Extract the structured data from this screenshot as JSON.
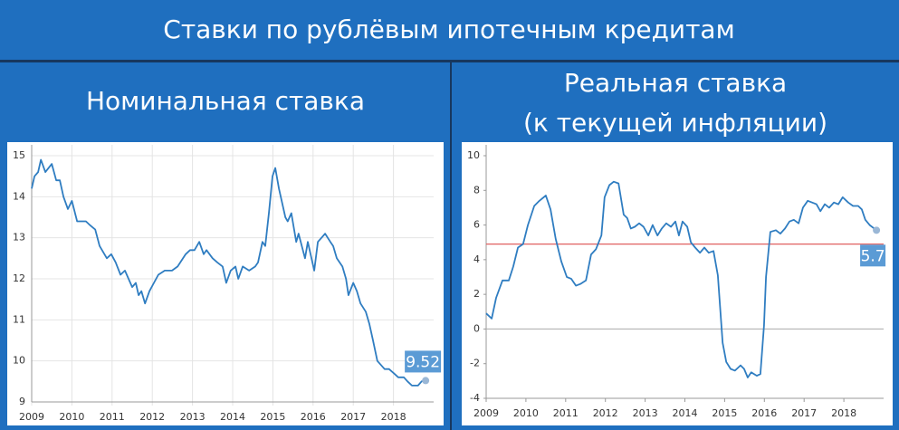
{
  "title": "Ставки по рублёвым ипотечным кредитам",
  "chart_data": [
    {
      "type": "line",
      "title": "Номинальная ставка",
      "color": "#2f7dc1",
      "grid": true,
      "xlim": [
        2009,
        2019
      ],
      "xticks": [
        2009,
        2010,
        2011,
        2012,
        2013,
        2014,
        2015,
        2016,
        2017,
        2018
      ],
      "ylim": [
        9,
        15
      ],
      "yticks": [
        9,
        10,
        11,
        12,
        13,
        14,
        15
      ],
      "x": [
        2009.0,
        2009.07,
        2009.16,
        2009.23,
        2009.34,
        2009.5,
        2009.61,
        2009.7,
        2009.79,
        2009.9,
        2010.0,
        2010.13,
        2010.35,
        2010.46,
        2010.58,
        2010.69,
        2010.87,
        2010.98,
        2011.09,
        2011.21,
        2011.32,
        2011.41,
        2011.5,
        2011.59,
        2011.66,
        2011.73,
        2011.82,
        2011.93,
        2012.04,
        2012.15,
        2012.31,
        2012.49,
        2012.63,
        2012.83,
        2012.94,
        2013.05,
        2013.17,
        2013.28,
        2013.35,
        2013.5,
        2013.62,
        2013.75,
        2013.84,
        2013.95,
        2014.07,
        2014.14,
        2014.25,
        2014.41,
        2014.56,
        2014.63,
        2014.74,
        2014.81,
        2014.9,
        2014.99,
        2015.06,
        2015.15,
        2015.31,
        2015.37,
        2015.46,
        2015.58,
        2015.64,
        2015.8,
        2015.87,
        2016.03,
        2016.12,
        2016.21,
        2016.3,
        2016.43,
        2016.5,
        2016.59,
        2016.73,
        2016.82,
        2016.88,
        2017.0,
        2017.09,
        2017.18,
        2017.31,
        2017.4,
        2017.49,
        2017.6,
        2017.69,
        2017.78,
        2017.89,
        2018.01,
        2018.12,
        2018.26,
        2018.35,
        2018.46,
        2018.61,
        2018.7,
        2018.8
      ],
      "values": [
        14.2,
        14.5,
        14.6,
        14.9,
        14.6,
        14.8,
        14.4,
        14.4,
        14.0,
        13.7,
        13.9,
        13.4,
        13.4,
        13.3,
        13.2,
        12.8,
        12.5,
        12.6,
        12.4,
        12.1,
        12.2,
        12.0,
        11.8,
        11.9,
        11.6,
        11.7,
        11.4,
        11.7,
        11.9,
        12.1,
        12.2,
        12.2,
        12.3,
        12.6,
        12.7,
        12.7,
        12.9,
        12.6,
        12.7,
        12.5,
        12.4,
        12.3,
        11.9,
        12.2,
        12.3,
        12.0,
        12.3,
        12.2,
        12.3,
        12.4,
        12.9,
        12.8,
        13.6,
        14.5,
        14.7,
        14.2,
        13.5,
        13.4,
        13.6,
        12.9,
        13.1,
        12.5,
        12.9,
        12.2,
        12.9,
        13.0,
        13.1,
        12.9,
        12.8,
        12.5,
        12.3,
        12.0,
        11.6,
        11.9,
        11.7,
        11.4,
        11.2,
        10.9,
        10.5,
        10.0,
        9.9,
        9.8,
        9.8,
        9.7,
        9.6,
        9.6,
        9.5,
        9.4,
        9.4,
        9.5,
        9.52
      ],
      "annotations": [
        {
          "x": 2018.8,
          "y": 9.52,
          "text": "9.52"
        }
      ]
    },
    {
      "type": "line",
      "title": "Реальная ставка",
      "subtitle": "(к текущей инфляции)",
      "color": "#2f7dc1",
      "grid": false,
      "xlim": [
        2009,
        2019
      ],
      "xticks": [
        2009,
        2010,
        2011,
        2012,
        2013,
        2014,
        2015,
        2016,
        2017,
        2018
      ],
      "ylim": [
        -4,
        10
      ],
      "yticks": [
        -4,
        -2,
        0,
        2,
        4,
        6,
        8,
        10
      ],
      "hline": {
        "value": 4.9,
        "color": "#e06060"
      },
      "x": [
        2009.0,
        2009.14,
        2009.25,
        2009.41,
        2009.57,
        2009.68,
        2009.8,
        2009.93,
        2010.05,
        2010.21,
        2010.34,
        2010.5,
        2010.62,
        2010.75,
        2010.89,
        2011.03,
        2011.14,
        2011.26,
        2011.37,
        2011.51,
        2011.64,
        2011.76,
        2011.9,
        2011.98,
        2012.1,
        2012.21,
        2012.33,
        2012.46,
        2012.55,
        2012.64,
        2012.74,
        2012.85,
        2012.96,
        2013.08,
        2013.19,
        2013.31,
        2013.42,
        2013.53,
        2013.65,
        2013.76,
        2013.85,
        2013.94,
        2014.06,
        2014.15,
        2014.26,
        2014.38,
        2014.49,
        2014.6,
        2014.72,
        2014.83,
        2014.95,
        2015.04,
        2015.15,
        2015.26,
        2015.4,
        2015.49,
        2015.58,
        2015.67,
        2015.81,
        2015.9,
        2015.99,
        2016.04,
        2016.15,
        2016.29,
        2016.4,
        2016.52,
        2016.63,
        2016.74,
        2016.86,
        2016.97,
        2017.09,
        2017.2,
        2017.31,
        2017.41,
        2017.52,
        2017.63,
        2017.75,
        2017.86,
        2017.97,
        2018.11,
        2018.23,
        2018.36,
        2018.45,
        2018.54,
        2018.65,
        2018.82
      ],
      "values": [
        0.9,
        0.6,
        1.8,
        2.8,
        2.8,
        3.6,
        4.7,
        4.9,
        6.0,
        7.1,
        7.4,
        7.7,
        6.9,
        5.2,
        3.9,
        3.0,
        2.9,
        2.5,
        2.6,
        2.8,
        4.3,
        4.6,
        5.4,
        7.6,
        8.3,
        8.5,
        8.4,
        6.6,
        6.4,
        5.8,
        5.9,
        6.1,
        5.9,
        5.4,
        6.0,
        5.4,
        5.8,
        6.1,
        5.9,
        6.2,
        5.4,
        6.2,
        5.9,
        5.0,
        4.7,
        4.4,
        4.7,
        4.4,
        4.5,
        3.1,
        -0.8,
        -1.9,
        -2.3,
        -2.4,
        -2.1,
        -2.3,
        -2.8,
        -2.5,
        -2.7,
        -2.6,
        0.2,
        3.0,
        5.6,
        5.7,
        5.5,
        5.8,
        6.2,
        6.3,
        6.1,
        7.0,
        7.4,
        7.3,
        7.2,
        6.8,
        7.2,
        7.0,
        7.3,
        7.2,
        7.6,
        7.3,
        7.1,
        7.1,
        6.9,
        6.3,
        6.0,
        5.7
      ],
      "annotations": [
        {
          "x": 2018.82,
          "y": 5.7,
          "text": "5.7"
        }
      ]
    }
  ]
}
